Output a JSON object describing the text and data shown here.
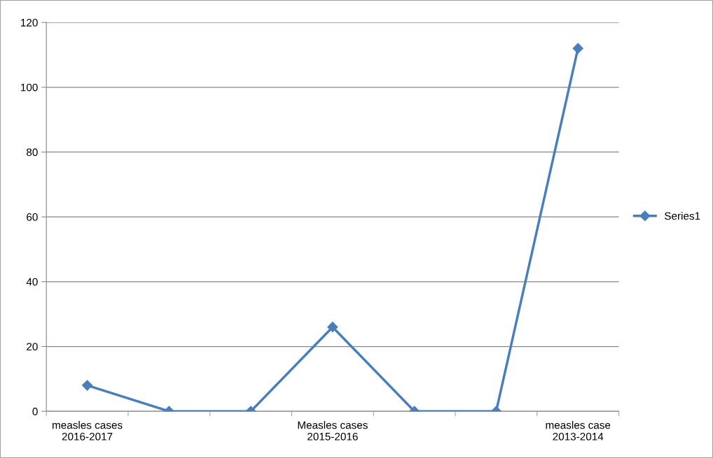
{
  "chart_data": {
    "type": "line",
    "categories": [
      "measles cases\n2016-2017",
      null,
      null,
      "Measles cases\n2015-2016",
      null,
      null,
      "measles case\n2013-2014"
    ],
    "series": [
      {
        "name": "Series1",
        "color": "#4a7ebb",
        "values": [
          8,
          0,
          0,
          26,
          0,
          0,
          112
        ]
      }
    ],
    "ylim": [
      0,
      120
    ],
    "yticks": [
      0,
      20,
      40,
      60,
      80,
      100,
      120
    ],
    "grid": "y",
    "legend": "right",
    "marker": "diamond",
    "line_style": "solid"
  }
}
